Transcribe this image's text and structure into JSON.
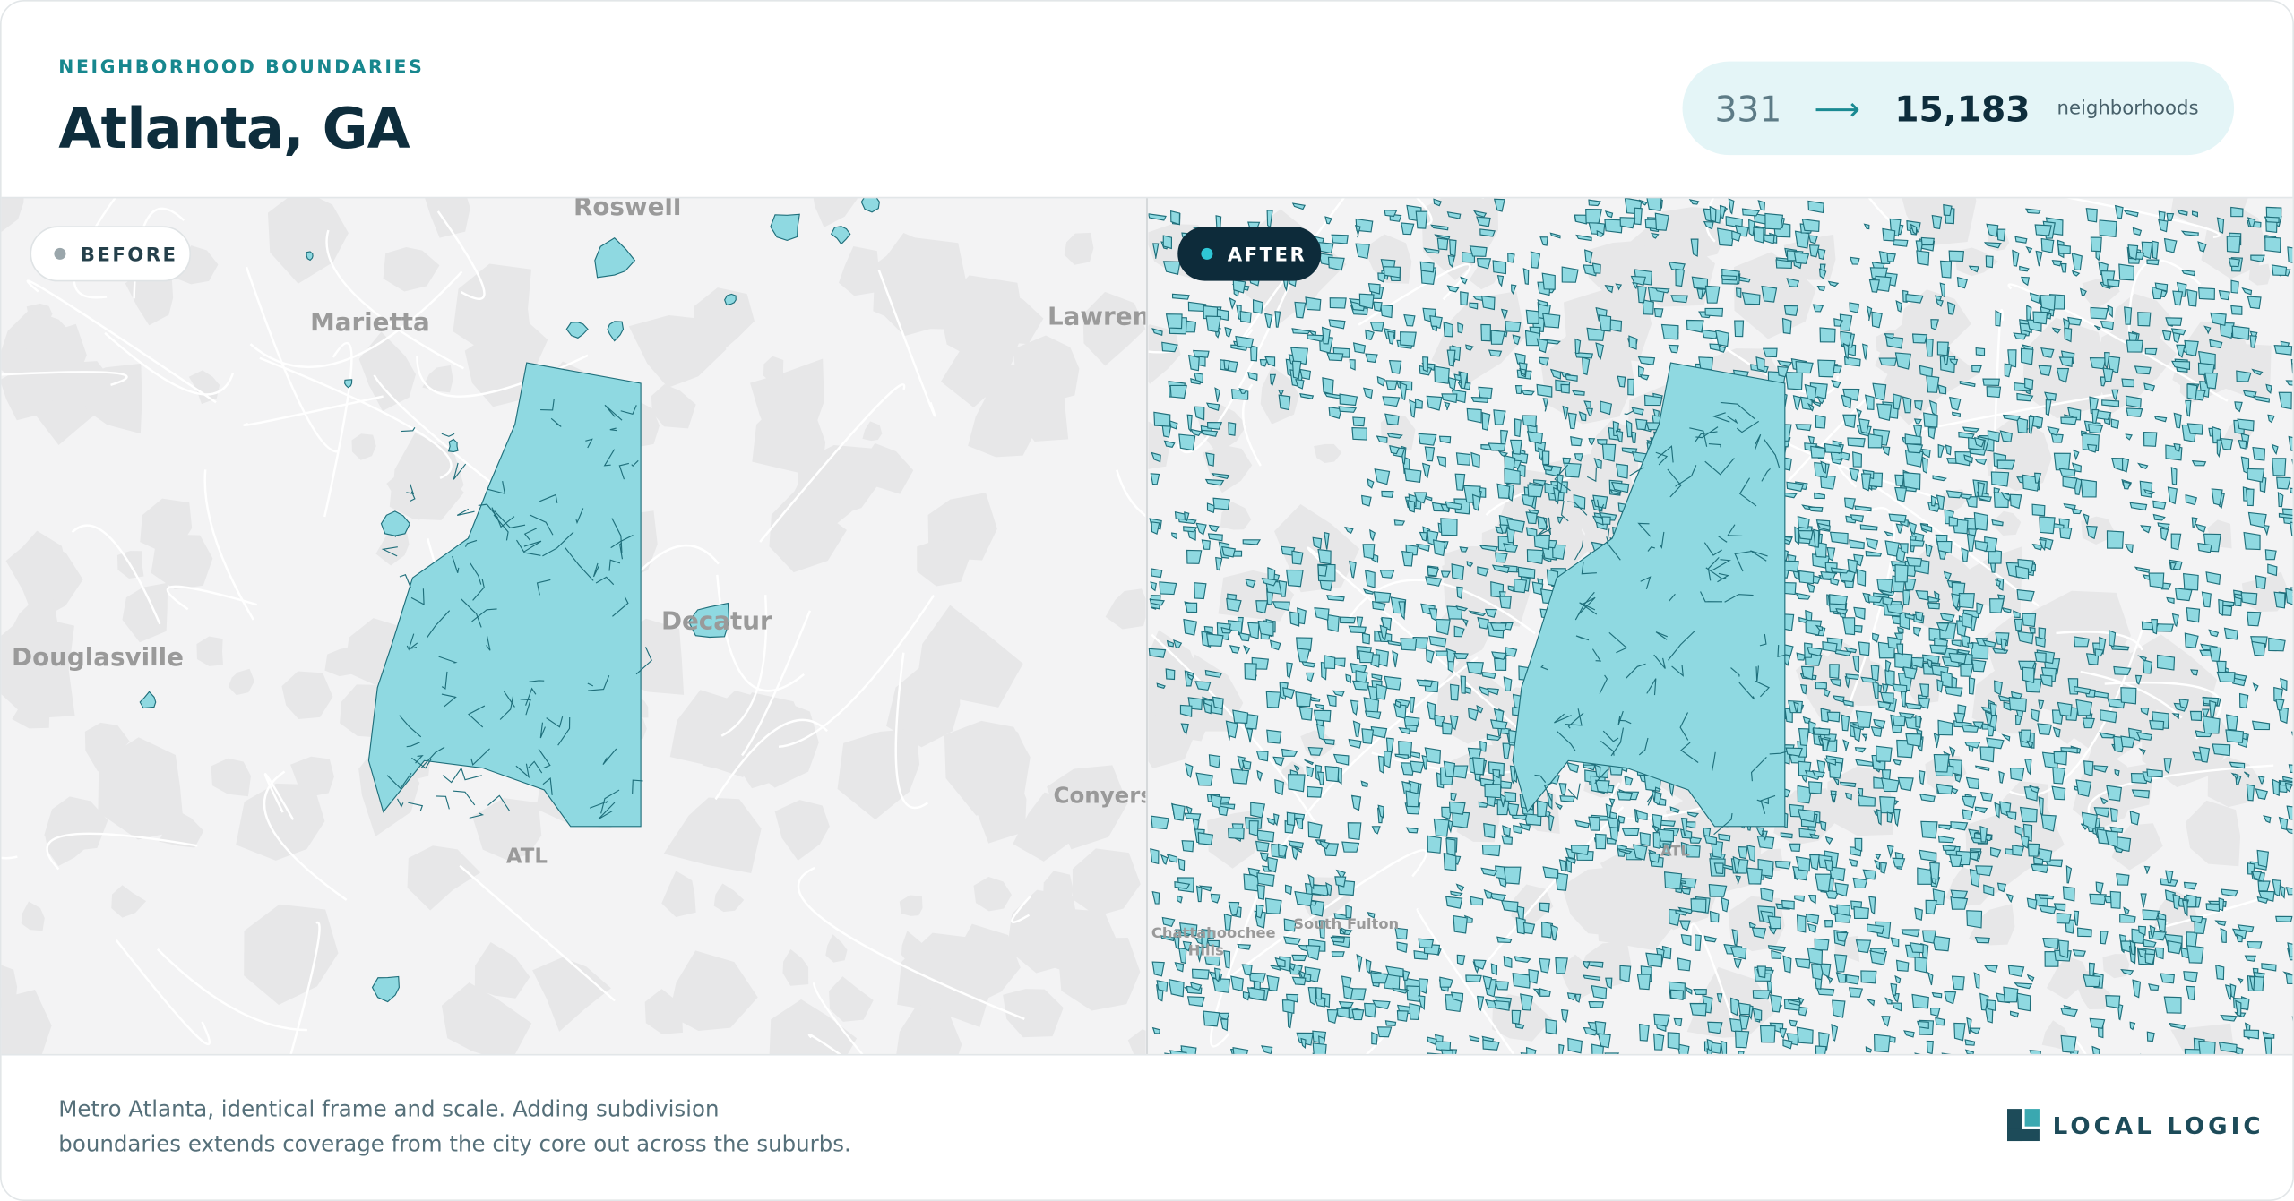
{
  "header": {
    "eyebrow": "NEIGHBORHOOD BOUNDARIES",
    "title": "Atlanta, GA"
  },
  "stats": {
    "before": "331",
    "arrow": "⟶",
    "after": "15,183",
    "unit": "neighborhoods"
  },
  "maps": {
    "before": {
      "label": "BEFORE",
      "places": [
        "Roswell",
        "Marietta",
        "Lawrenceville",
        "Douglasville",
        "Decatur",
        "ATL",
        "Conyers"
      ]
    },
    "after": {
      "label": "AFTER",
      "places": [
        "Chattahoochee",
        "Hills",
        "ATL",
        "South Fulton"
      ]
    }
  },
  "footer": {
    "caption": [
      "Metro Atlanta, identical frame and scale. Adding subdivision",
      "boundaries extends coverage from the city core out across the suburbs."
    ],
    "logo": "LOCAL LOGIC"
  }
}
